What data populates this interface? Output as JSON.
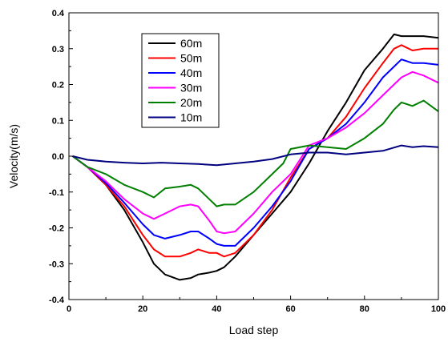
{
  "chart_data": {
    "type": "line",
    "xlabel": "Load step",
    "ylabel": "Velocity(m/s)",
    "xlim": [
      0,
      100
    ],
    "ylim": [
      -0.4,
      0.4
    ],
    "xticks": [
      0,
      20,
      40,
      60,
      80,
      100
    ],
    "yticks": [
      -0.4,
      -0.3,
      -0.2,
      -0.1,
      0.0,
      0.1,
      0.2,
      0.3,
      0.4
    ],
    "xtick_labels": [
      "0",
      "20",
      "40",
      "60",
      "80",
      "100"
    ],
    "ytick_labels": [
      "-0.4",
      "-0.3",
      "-0.2",
      "-0.1",
      "0.0",
      "0.1",
      "0.2",
      "0.3",
      "0.4"
    ],
    "grid": false,
    "legend_position": "top-left",
    "series": [
      {
        "name": "60m",
        "color": "#000000",
        "x": [
          1,
          5,
          10,
          15,
          20,
          23,
          26,
          30,
          33,
          35,
          38,
          40,
          42,
          45,
          50,
          55,
          60,
          65,
          70,
          75,
          80,
          85,
          88,
          90,
          93,
          96,
          100
        ],
        "y": [
          0.0,
          -0.03,
          -0.08,
          -0.15,
          -0.24,
          -0.3,
          -0.33,
          -0.345,
          -0.34,
          -0.33,
          -0.325,
          -0.32,
          -0.31,
          -0.28,
          -0.22,
          -0.16,
          -0.1,
          -0.02,
          0.07,
          0.15,
          0.24,
          0.3,
          0.34,
          0.335,
          0.335,
          0.335,
          0.33
        ]
      },
      {
        "name": "50m",
        "color": "#ff0000",
        "x": [
          1,
          5,
          10,
          15,
          20,
          23,
          26,
          30,
          33,
          35,
          38,
          40,
          42,
          45,
          50,
          55,
          60,
          65,
          70,
          75,
          80,
          85,
          88,
          90,
          93,
          96,
          100
        ],
        "y": [
          0.0,
          -0.03,
          -0.08,
          -0.14,
          -0.22,
          -0.26,
          -0.28,
          -0.28,
          -0.27,
          -0.26,
          -0.27,
          -0.27,
          -0.28,
          -0.27,
          -0.22,
          -0.15,
          -0.06,
          0.02,
          0.05,
          0.11,
          0.19,
          0.26,
          0.3,
          0.31,
          0.295,
          0.3,
          0.3
        ]
      },
      {
        "name": "40m",
        "color": "#0000ff",
        "x": [
          1,
          5,
          10,
          15,
          20,
          23,
          26,
          30,
          33,
          35,
          38,
          40,
          42,
          45,
          50,
          55,
          60,
          65,
          70,
          75,
          80,
          85,
          88,
          90,
          93,
          96,
          100
        ],
        "y": [
          0.0,
          -0.03,
          -0.075,
          -0.13,
          -0.19,
          -0.22,
          -0.23,
          -0.22,
          -0.21,
          -0.21,
          -0.23,
          -0.245,
          -0.25,
          -0.25,
          -0.2,
          -0.14,
          -0.07,
          0.02,
          0.05,
          0.09,
          0.15,
          0.22,
          0.25,
          0.27,
          0.26,
          0.26,
          0.255
        ]
      },
      {
        "name": "30m",
        "color": "#ff00ff",
        "x": [
          1,
          5,
          10,
          15,
          20,
          23,
          26,
          30,
          33,
          35,
          38,
          40,
          42,
          45,
          50,
          55,
          60,
          65,
          70,
          75,
          80,
          85,
          88,
          90,
          93,
          96,
          100
        ],
        "y": [
          0.0,
          -0.03,
          -0.07,
          -0.12,
          -0.16,
          -0.175,
          -0.16,
          -0.14,
          -0.135,
          -0.14,
          -0.18,
          -0.21,
          -0.215,
          -0.21,
          -0.16,
          -0.1,
          -0.05,
          0.03,
          0.05,
          0.08,
          0.12,
          0.17,
          0.2,
          0.22,
          0.235,
          0.225,
          0.205
        ]
      },
      {
        "name": "20m",
        "color": "#008000",
        "x": [
          1,
          5,
          10,
          15,
          20,
          23,
          26,
          30,
          33,
          35,
          38,
          40,
          42,
          45,
          50,
          55,
          58,
          60,
          65,
          70,
          75,
          80,
          85,
          88,
          90,
          93,
          96,
          100
        ],
        "y": [
          0.0,
          -0.03,
          -0.05,
          -0.08,
          -0.1,
          -0.115,
          -0.09,
          -0.085,
          -0.08,
          -0.09,
          -0.12,
          -0.14,
          -0.135,
          -0.135,
          -0.1,
          -0.05,
          -0.02,
          0.02,
          0.03,
          0.025,
          0.02,
          0.05,
          0.09,
          0.13,
          0.15,
          0.14,
          0.155,
          0.125
        ]
      },
      {
        "name": "10m",
        "color": "#000080",
        "x": [
          1,
          5,
          10,
          15,
          20,
          25,
          30,
          35,
          40,
          45,
          50,
          55,
          60,
          65,
          70,
          75,
          80,
          85,
          90,
          93,
          96,
          100
        ],
        "y": [
          0.0,
          -0.01,
          -0.015,
          -0.018,
          -0.02,
          -0.018,
          -0.02,
          -0.022,
          -0.025,
          -0.02,
          -0.015,
          -0.008,
          0.005,
          0.01,
          0.01,
          0.005,
          0.01,
          0.015,
          0.03,
          0.025,
          0.028,
          0.025
        ]
      }
    ]
  }
}
